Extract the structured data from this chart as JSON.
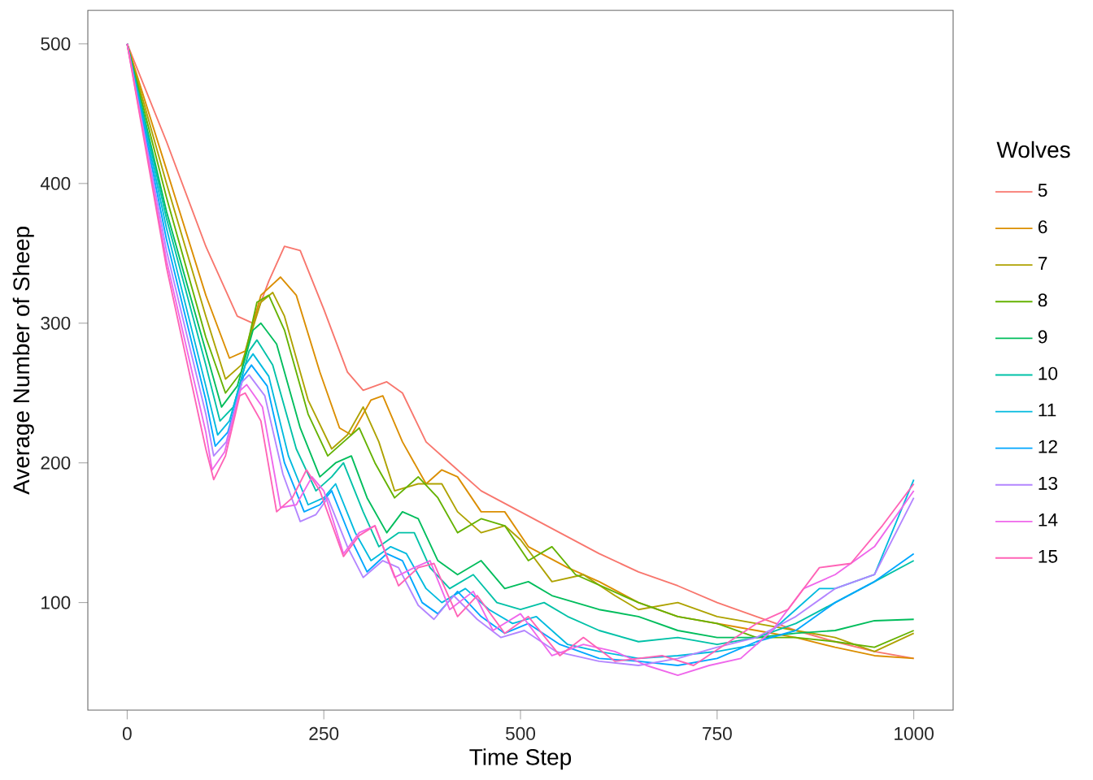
{
  "chart_data": {
    "type": "line",
    "xlabel": "Time Step",
    "ylabel": "Average Number of Sheep",
    "legend_title": "Wolves",
    "legend": "right",
    "grid": false,
    "marker": "none",
    "line_style": "solid",
    "xlim": [
      -50,
      1050
    ],
    "ylim": [
      23,
      524
    ],
    "xticks": [
      0,
      250,
      500,
      750,
      1000
    ],
    "yticks": [
      100,
      200,
      300,
      400,
      500
    ],
    "series": [
      {
        "name": "5",
        "color": "#F8766D",
        "x": [
          0,
          50,
          100,
          140,
          160,
          180,
          200,
          220,
          250,
          280,
          300,
          330,
          350,
          380,
          410,
          450,
          500,
          550,
          600,
          650,
          700,
          750,
          800,
          850,
          900,
          950,
          1000
        ],
        "values": [
          500,
          430,
          355,
          305,
          300,
          330,
          355,
          352,
          310,
          265,
          252,
          258,
          250,
          215,
          200,
          180,
          165,
          150,
          135,
          122,
          112,
          100,
          90,
          80,
          72,
          65,
          60
        ]
      },
      {
        "name": "6",
        "color": "#DB8E00",
        "x": [
          0,
          50,
          100,
          130,
          150,
          170,
          195,
          215,
          245,
          270,
          285,
          310,
          325,
          350,
          380,
          400,
          420,
          450,
          480,
          510,
          560,
          600,
          650,
          700,
          750,
          800,
          850,
          900,
          950,
          1000
        ],
        "values": [
          500,
          410,
          320,
          275,
          280,
          320,
          333,
          320,
          265,
          225,
          220,
          245,
          248,
          215,
          185,
          195,
          190,
          165,
          165,
          140,
          125,
          115,
          100,
          90,
          85,
          80,
          75,
          68,
          62,
          60
        ]
      },
      {
        "name": "7",
        "color": "#AEA200",
        "x": [
          0,
          50,
          100,
          125,
          145,
          170,
          185,
          200,
          230,
          260,
          280,
          300,
          320,
          340,
          370,
          400,
          420,
          450,
          480,
          500,
          540,
          580,
          620,
          650,
          700,
          750,
          800,
          850,
          900,
          950,
          1000
        ],
        "values": [
          500,
          400,
          305,
          260,
          270,
          315,
          322,
          305,
          245,
          210,
          220,
          240,
          215,
          180,
          185,
          185,
          165,
          150,
          155,
          145,
          115,
          120,
          105,
          95,
          100,
          90,
          85,
          80,
          75,
          65,
          78
        ]
      },
      {
        "name": "8",
        "color": "#64B200",
        "x": [
          0,
          50,
          100,
          125,
          145,
          165,
          180,
          200,
          230,
          255,
          275,
          295,
          315,
          340,
          370,
          395,
          420,
          450,
          480,
          510,
          540,
          570,
          610,
          650,
          700,
          750,
          800,
          850,
          900,
          950,
          1000
        ],
        "values": [
          500,
          390,
          290,
          250,
          265,
          315,
          320,
          295,
          235,
          205,
          215,
          225,
          200,
          175,
          190,
          175,
          150,
          160,
          155,
          130,
          140,
          120,
          110,
          100,
          90,
          85,
          75,
          75,
          72,
          68,
          80
        ]
      },
      {
        "name": "9",
        "color": "#00BD5C",
        "x": [
          0,
          50,
          100,
          120,
          140,
          160,
          170,
          190,
          220,
          245,
          265,
          285,
          305,
          330,
          350,
          370,
          395,
          420,
          450,
          480,
          510,
          540,
          570,
          600,
          650,
          700,
          750,
          800,
          850,
          900,
          950,
          1000
        ],
        "values": [
          500,
          380,
          280,
          240,
          255,
          295,
          300,
          285,
          225,
          190,
          200,
          205,
          175,
          150,
          165,
          160,
          130,
          120,
          130,
          110,
          115,
          105,
          100,
          95,
          90,
          80,
          75,
          75,
          78,
          80,
          87,
          88
        ]
      },
      {
        "name": "10",
        "color": "#00C1A7",
        "x": [
          0,
          50,
          100,
          118,
          135,
          155,
          165,
          185,
          215,
          240,
          260,
          275,
          300,
          320,
          345,
          365,
          385,
          410,
          440,
          470,
          500,
          530,
          560,
          600,
          650,
          700,
          750,
          800,
          850,
          900,
          950,
          1000
        ],
        "values": [
          500,
          375,
          270,
          230,
          240,
          280,
          288,
          270,
          210,
          180,
          190,
          200,
          165,
          140,
          150,
          150,
          125,
          110,
          120,
          100,
          95,
          100,
          90,
          80,
          72,
          75,
          70,
          75,
          85,
          100,
          115,
          130
        ]
      },
      {
        "name": "11",
        "color": "#00BADE",
        "x": [
          0,
          50,
          100,
          115,
          130,
          150,
          160,
          180,
          205,
          230,
          250,
          265,
          290,
          310,
          335,
          355,
          380,
          400,
          430,
          460,
          490,
          520,
          560,
          600,
          650,
          700,
          750,
          800,
          850,
          880,
          900,
          950,
          1000
        ],
        "values": [
          500,
          368,
          255,
          220,
          230,
          270,
          278,
          262,
          205,
          170,
          175,
          185,
          150,
          130,
          140,
          135,
          110,
          100,
          110,
          95,
          85,
          90,
          70,
          65,
          60,
          62,
          65,
          70,
          95,
          110,
          110,
          120,
          188
        ]
      },
      {
        "name": "12",
        "color": "#00A6FF",
        "x": [
          0,
          50,
          100,
          112,
          128,
          148,
          158,
          178,
          200,
          225,
          245,
          260,
          285,
          305,
          330,
          350,
          375,
          395,
          420,
          450,
          480,
          510,
          550,
          600,
          650,
          700,
          750,
          800,
          850,
          900,
          950,
          1000
        ],
        "values": [
          500,
          360,
          245,
          212,
          222,
          262,
          270,
          255,
          200,
          165,
          170,
          180,
          145,
          122,
          135,
          130,
          100,
          92,
          108,
          90,
          78,
          85,
          70,
          60,
          58,
          55,
          60,
          72,
          80,
          100,
          115,
          135
        ]
      },
      {
        "name": "13",
        "color": "#B385FF",
        "x": [
          0,
          50,
          100,
          110,
          126,
          146,
          155,
          175,
          198,
          220,
          240,
          255,
          280,
          300,
          325,
          345,
          370,
          390,
          415,
          445,
          475,
          505,
          545,
          600,
          650,
          700,
          750,
          800,
          850,
          900,
          950,
          1000
        ],
        "values": [
          500,
          352,
          235,
          205,
          215,
          258,
          263,
          248,
          192,
          158,
          163,
          175,
          140,
          118,
          130,
          125,
          98,
          88,
          105,
          88,
          75,
          80,
          65,
          58,
          55,
          60,
          68,
          75,
          90,
          110,
          120,
          175
        ]
      },
      {
        "name": "14",
        "color": "#EF67EB",
        "x": [
          0,
          50,
          100,
          108,
          124,
          144,
          152,
          172,
          195,
          215,
          235,
          250,
          275,
          295,
          315,
          340,
          365,
          385,
          410,
          440,
          465,
          500,
          540,
          580,
          620,
          660,
          700,
          740,
          780,
          820,
          860,
          900,
          950,
          1000
        ],
        "values": [
          500,
          345,
          222,
          195,
          208,
          252,
          256,
          240,
          168,
          170,
          190,
          180,
          135,
          150,
          155,
          118,
          125,
          130,
          95,
          108,
          80,
          92,
          62,
          70,
          65,
          55,
          48,
          55,
          60,
          80,
          110,
          120,
          140,
          180
        ]
      },
      {
        "name": "15",
        "color": "#FF63B6",
        "x": [
          0,
          50,
          100,
          110,
          125,
          143,
          150,
          170,
          190,
          210,
          228,
          245,
          275,
          295,
          315,
          345,
          370,
          390,
          420,
          445,
          480,
          510,
          550,
          580,
          620,
          680,
          720,
          760,
          800,
          840,
          880,
          920,
          960,
          1000
        ],
        "values": [
          500,
          340,
          210,
          188,
          205,
          248,
          250,
          230,
          165,
          175,
          195,
          180,
          133,
          148,
          155,
          112,
          125,
          128,
          90,
          105,
          78,
          90,
          62,
          75,
          58,
          62,
          55,
          70,
          85,
          95,
          125,
          128,
          155,
          185
        ]
      }
    ]
  }
}
